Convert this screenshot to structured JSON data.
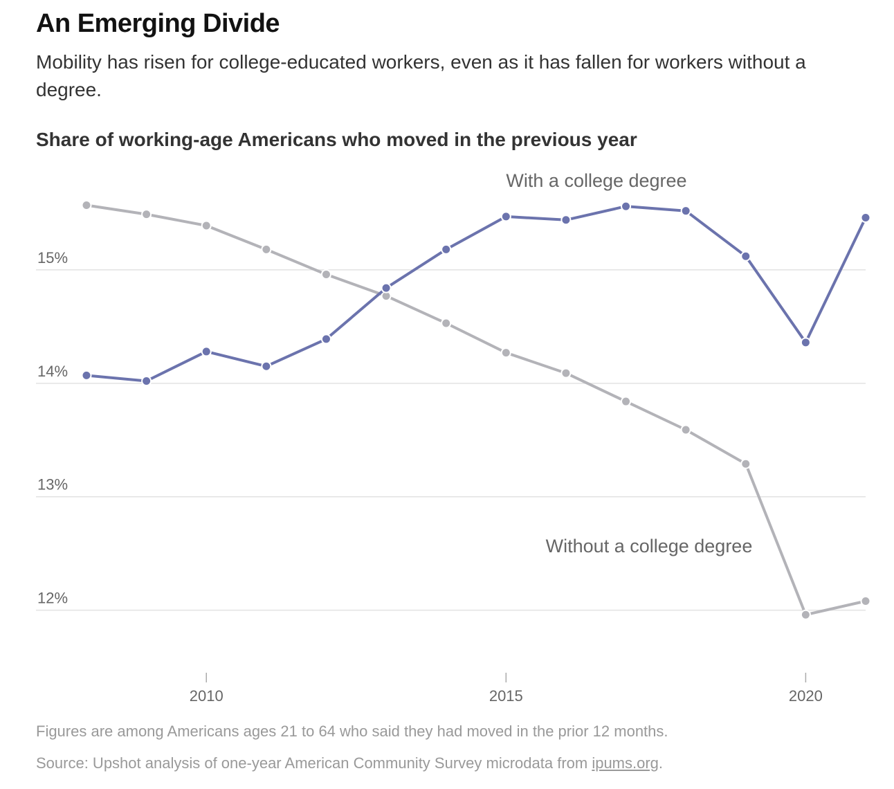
{
  "header": {
    "headline": "An Emerging Divide",
    "subhead": "Mobility has risen for college-educated workers, even as it has fallen for workers without a degree.",
    "chart_title": "Share of working-age Americans who moved in the previous year"
  },
  "footer": {
    "note": "Figures are among Americans ages 21 to 64 who said they had moved in the prior 12 months.",
    "source_prefix": "Source: Upshot analysis of one-year American Community Survey microdata from ",
    "source_link": "ipums.org",
    "source_suffix": "."
  },
  "chart_data": {
    "type": "line",
    "title": "Share of working-age Americans who moved in the previous year",
    "xlabel": "",
    "ylabel": "",
    "x": [
      2008,
      2009,
      2010,
      2011,
      2012,
      2013,
      2014,
      2015,
      2016,
      2017,
      2018,
      2019,
      2020,
      2021
    ],
    "x_ticks": [
      2010,
      2015,
      2020
    ],
    "y_ticks": [
      12,
      13,
      14,
      15
    ],
    "y_tick_labels": [
      "12%",
      "13%",
      "14%",
      "15%"
    ],
    "xlim": [
      2008,
      2021
    ],
    "ylim": [
      11.4,
      16.0
    ],
    "grid": "horizontal",
    "series": [
      {
        "name": "With a college degree",
        "color": "#6b73ad",
        "values": [
          14.07,
          14.02,
          14.28,
          14.15,
          14.39,
          14.84,
          15.18,
          15.47,
          15.44,
          15.56,
          15.52,
          15.12,
          14.36,
          15.46
        ]
      },
      {
        "name": "Without a college degree",
        "color": "#b3b3b8",
        "values": [
          15.57,
          15.49,
          15.39,
          15.18,
          14.96,
          14.77,
          14.53,
          14.27,
          14.09,
          13.84,
          13.59,
          13.29,
          11.96,
          12.08
        ]
      }
    ]
  }
}
